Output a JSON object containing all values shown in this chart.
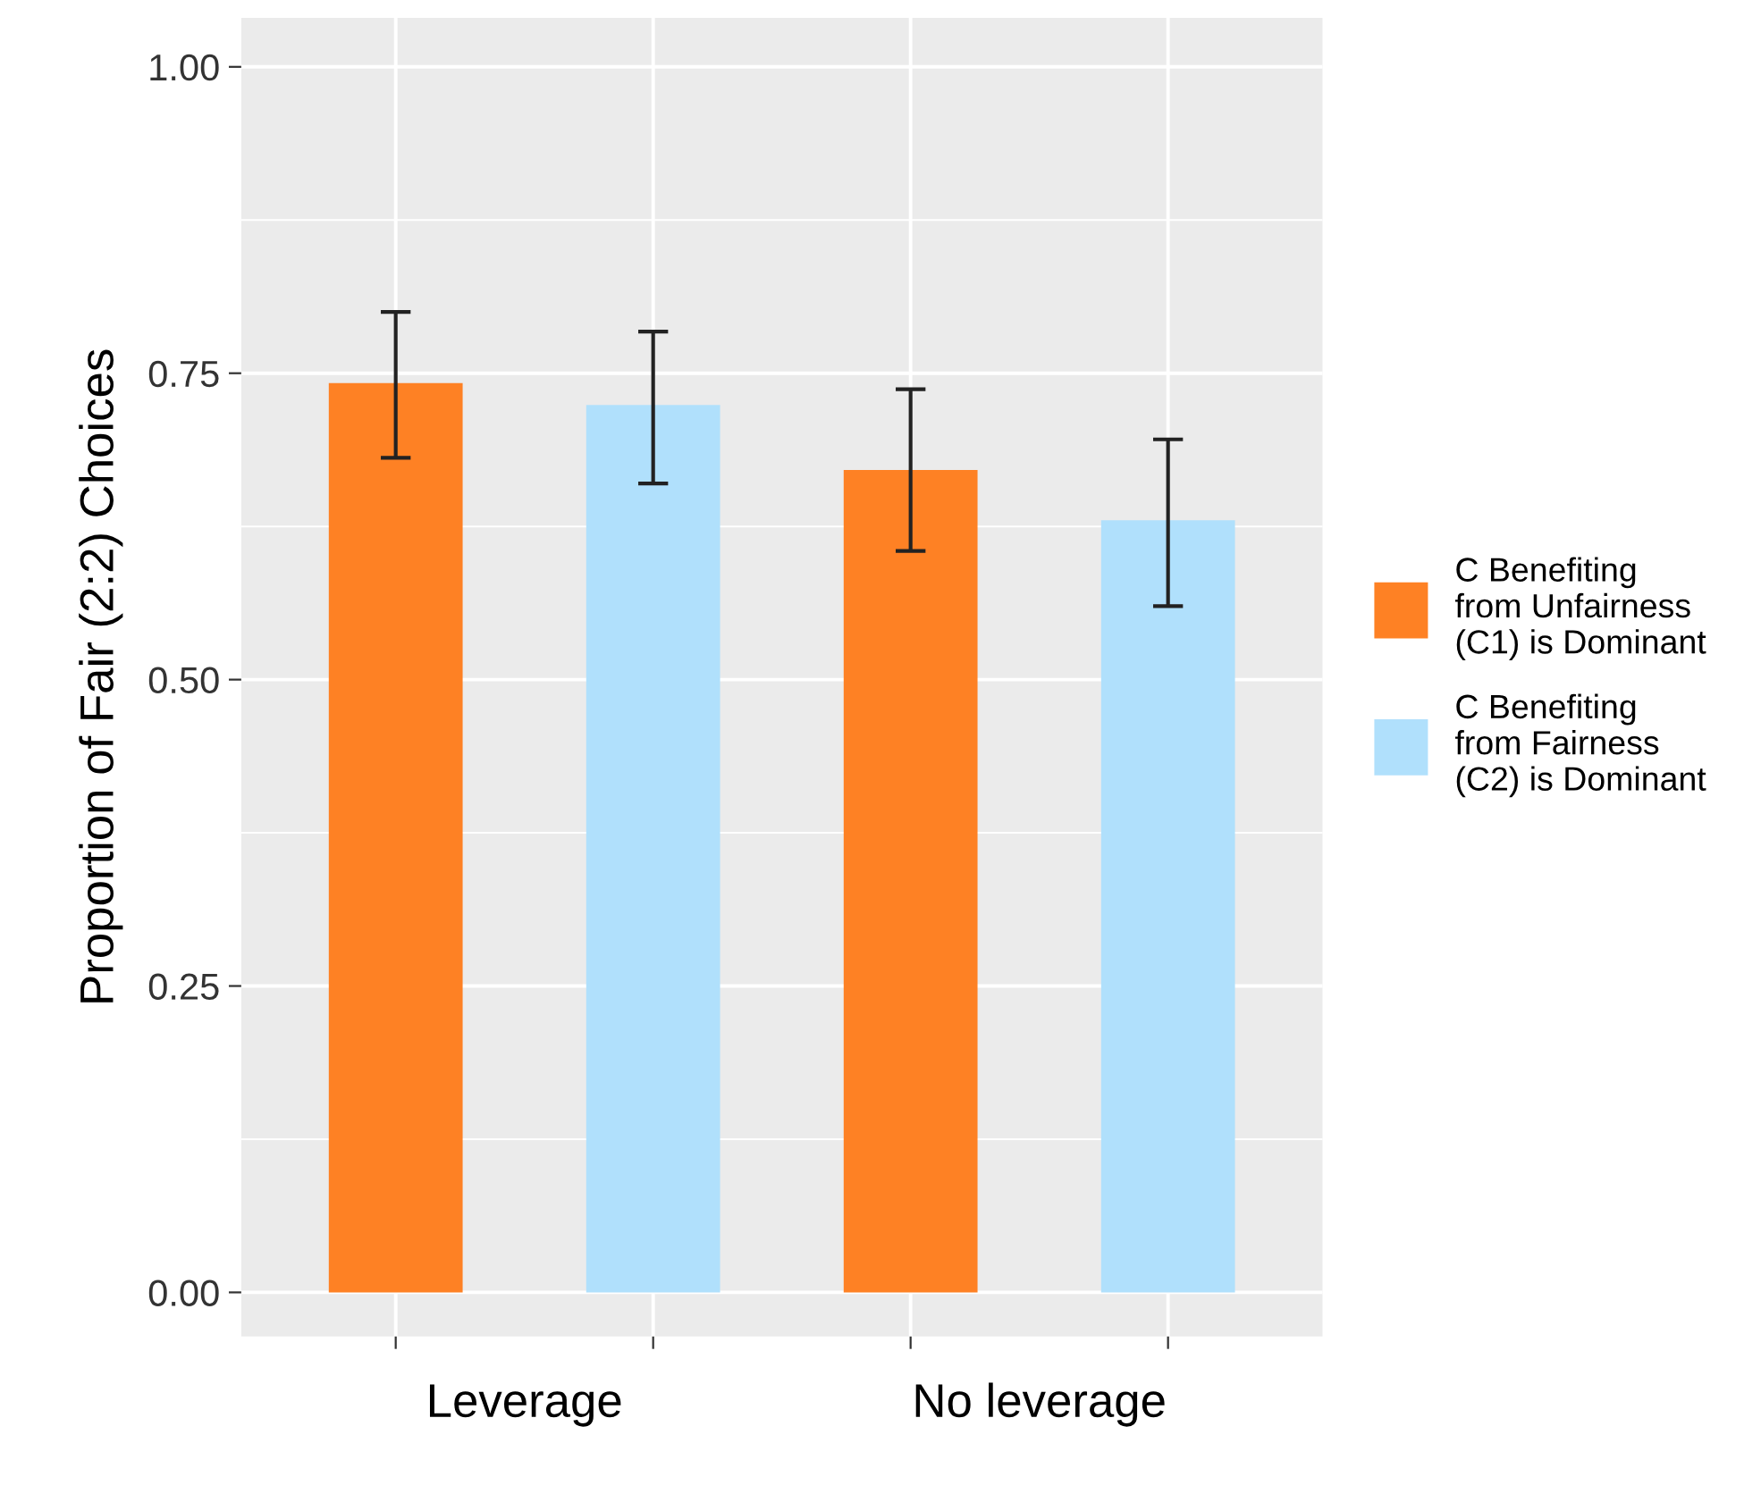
{
  "chart_data": {
    "type": "bar",
    "ylabel": "Proportion of Fair (2:2) Choices",
    "categories": [
      "Leverage",
      "No leverage"
    ],
    "series": [
      {
        "name": "C Benefiting\nfrom Unfairness\n(C1) is Dominant",
        "color": "#fe8124",
        "values": [
          0.742,
          0.671
        ],
        "errors": [
          [
            0.681,
            0.8
          ],
          [
            0.605,
            0.737
          ]
        ]
      },
      {
        "name": "C Benefiting\nfrom Fairness\n(C2) is Dominant",
        "color": "#b0e0fc",
        "values": [
          0.724,
          0.63
        ],
        "errors": [
          [
            0.66,
            0.784
          ],
          [
            0.56,
            0.696
          ]
        ]
      }
    ],
    "ylim": [
      -0.036,
      1.04
    ],
    "yticks": [
      {
        "value": 0,
        "label": "0.00"
      },
      {
        "value": 0.25,
        "label": "0.25"
      },
      {
        "value": 0.5,
        "label": "0.50"
      },
      {
        "value": 0.75,
        "label": "0.75"
      },
      {
        "value": 1,
        "label": "1.00"
      }
    ],
    "grid": true,
    "legend": "right"
  }
}
